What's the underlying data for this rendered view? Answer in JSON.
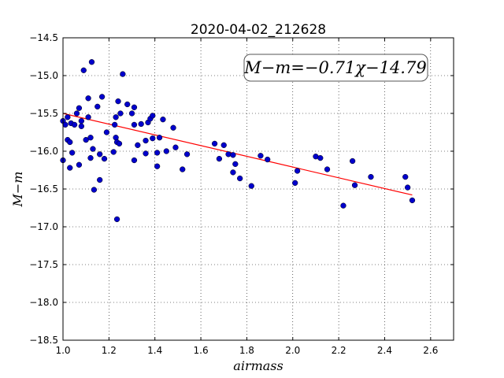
{
  "chart_data": {
    "type": "scatter",
    "title": "2020-04-02_212628",
    "xlabel": "airmass",
    "ylabel": "M−m",
    "xlim": [
      1.0,
      2.7
    ],
    "ylim": [
      -18.5,
      -14.5
    ],
    "x_ticks": [
      "1.0",
      "1.2",
      "1.4",
      "1.6",
      "1.8",
      "2.0",
      "2.2",
      "2.4",
      "2.6"
    ],
    "y_ticks": [
      "−14.5",
      "−15.0",
      "−15.5",
      "−16.0",
      "−16.5",
      "−17.0",
      "−17.5",
      "−18.0",
      "−18.5"
    ],
    "grid": true,
    "annotation": "M−m=−0.71χ−14.79",
    "fit": {
      "slope": -0.71,
      "intercept": -14.79,
      "x_range": [
        1.0,
        2.52
      ],
      "color": "#ff0000"
    },
    "point_color": "#0000cc",
    "points": [
      {
        "x": 1.0,
        "y": -15.6
      },
      {
        "x": 1.0,
        "y": -16.12
      },
      {
        "x": 1.01,
        "y": -15.65
      },
      {
        "x": 1.02,
        "y": -15.55
      },
      {
        "x": 1.02,
        "y": -15.85
      },
      {
        "x": 1.03,
        "y": -15.88
      },
      {
        "x": 1.03,
        "y": -16.22
      },
      {
        "x": 1.035,
        "y": -15.63
      },
      {
        "x": 1.04,
        "y": -16.02
      },
      {
        "x": 1.05,
        "y": -15.65
      },
      {
        "x": 1.06,
        "y": -15.5
      },
      {
        "x": 1.07,
        "y": -15.43
      },
      {
        "x": 1.07,
        "y": -16.18
      },
      {
        "x": 1.08,
        "y": -15.6
      },
      {
        "x": 1.08,
        "y": -15.67
      },
      {
        "x": 1.09,
        "y": -14.93
      },
      {
        "x": 1.1,
        "y": -15.85
      },
      {
        "x": 1.11,
        "y": -15.3
      },
      {
        "x": 1.11,
        "y": -15.55
      },
      {
        "x": 1.12,
        "y": -16.09
      },
      {
        "x": 1.12,
        "y": -15.82
      },
      {
        "x": 1.125,
        "y": -14.82
      },
      {
        "x": 1.13,
        "y": -15.97
      },
      {
        "x": 1.135,
        "y": -16.51
      },
      {
        "x": 1.15,
        "y": -15.41
      },
      {
        "x": 1.16,
        "y": -16.38
      },
      {
        "x": 1.16,
        "y": -16.04
      },
      {
        "x": 1.17,
        "y": -15.28
      },
      {
        "x": 1.18,
        "y": -16.1
      },
      {
        "x": 1.19,
        "y": -15.75
      },
      {
        "x": 1.22,
        "y": -16.01
      },
      {
        "x": 1.225,
        "y": -15.65
      },
      {
        "x": 1.23,
        "y": -15.55
      },
      {
        "x": 1.23,
        "y": -15.82
      },
      {
        "x": 1.235,
        "y": -15.88
      },
      {
        "x": 1.235,
        "y": -16.9
      },
      {
        "x": 1.24,
        "y": -15.34
      },
      {
        "x": 1.245,
        "y": -15.9
      },
      {
        "x": 1.25,
        "y": -15.5
      },
      {
        "x": 1.26,
        "y": -14.98
      },
      {
        "x": 1.28,
        "y": -15.38
      },
      {
        "x": 1.3,
        "y": -15.5
      },
      {
        "x": 1.31,
        "y": -15.65
      },
      {
        "x": 1.31,
        "y": -16.12
      },
      {
        "x": 1.31,
        "y": -15.42
      },
      {
        "x": 1.325,
        "y": -15.92
      },
      {
        "x": 1.34,
        "y": -15.64
      },
      {
        "x": 1.36,
        "y": -15.86
      },
      {
        "x": 1.36,
        "y": -16.03
      },
      {
        "x": 1.37,
        "y": -15.62
      },
      {
        "x": 1.38,
        "y": -15.57
      },
      {
        "x": 1.39,
        "y": -15.53
      },
      {
        "x": 1.39,
        "y": -15.83
      },
      {
        "x": 1.41,
        "y": -16.02
      },
      {
        "x": 1.41,
        "y": -16.2
      },
      {
        "x": 1.42,
        "y": -15.82
      },
      {
        "x": 1.435,
        "y": -15.58
      },
      {
        "x": 1.45,
        "y": -16.0
      },
      {
        "x": 1.48,
        "y": -15.69
      },
      {
        "x": 1.49,
        "y": -15.95
      },
      {
        "x": 1.52,
        "y": -16.24
      },
      {
        "x": 1.54,
        "y": -16.04
      },
      {
        "x": 1.66,
        "y": -15.9
      },
      {
        "x": 1.68,
        "y": -16.1
      },
      {
        "x": 1.7,
        "y": -15.92
      },
      {
        "x": 1.72,
        "y": -16.04
      },
      {
        "x": 1.74,
        "y": -16.05
      },
      {
        "x": 1.74,
        "y": -16.28
      },
      {
        "x": 1.75,
        "y": -16.17
      },
      {
        "x": 1.77,
        "y": -16.36
      },
      {
        "x": 1.82,
        "y": -16.46
      },
      {
        "x": 1.86,
        "y": -16.06
      },
      {
        "x": 1.89,
        "y": -16.11
      },
      {
        "x": 2.01,
        "y": -16.42
      },
      {
        "x": 2.02,
        "y": -16.26
      },
      {
        "x": 2.1,
        "y": -16.07
      },
      {
        "x": 2.12,
        "y": -16.09
      },
      {
        "x": 2.15,
        "y": -16.24
      },
      {
        "x": 2.22,
        "y": -16.72
      },
      {
        "x": 2.26,
        "y": -16.13
      },
      {
        "x": 2.27,
        "y": -16.45
      },
      {
        "x": 2.34,
        "y": -16.34
      },
      {
        "x": 2.49,
        "y": -16.34
      },
      {
        "x": 2.5,
        "y": -16.48
      },
      {
        "x": 2.52,
        "y": -16.65
      }
    ]
  }
}
